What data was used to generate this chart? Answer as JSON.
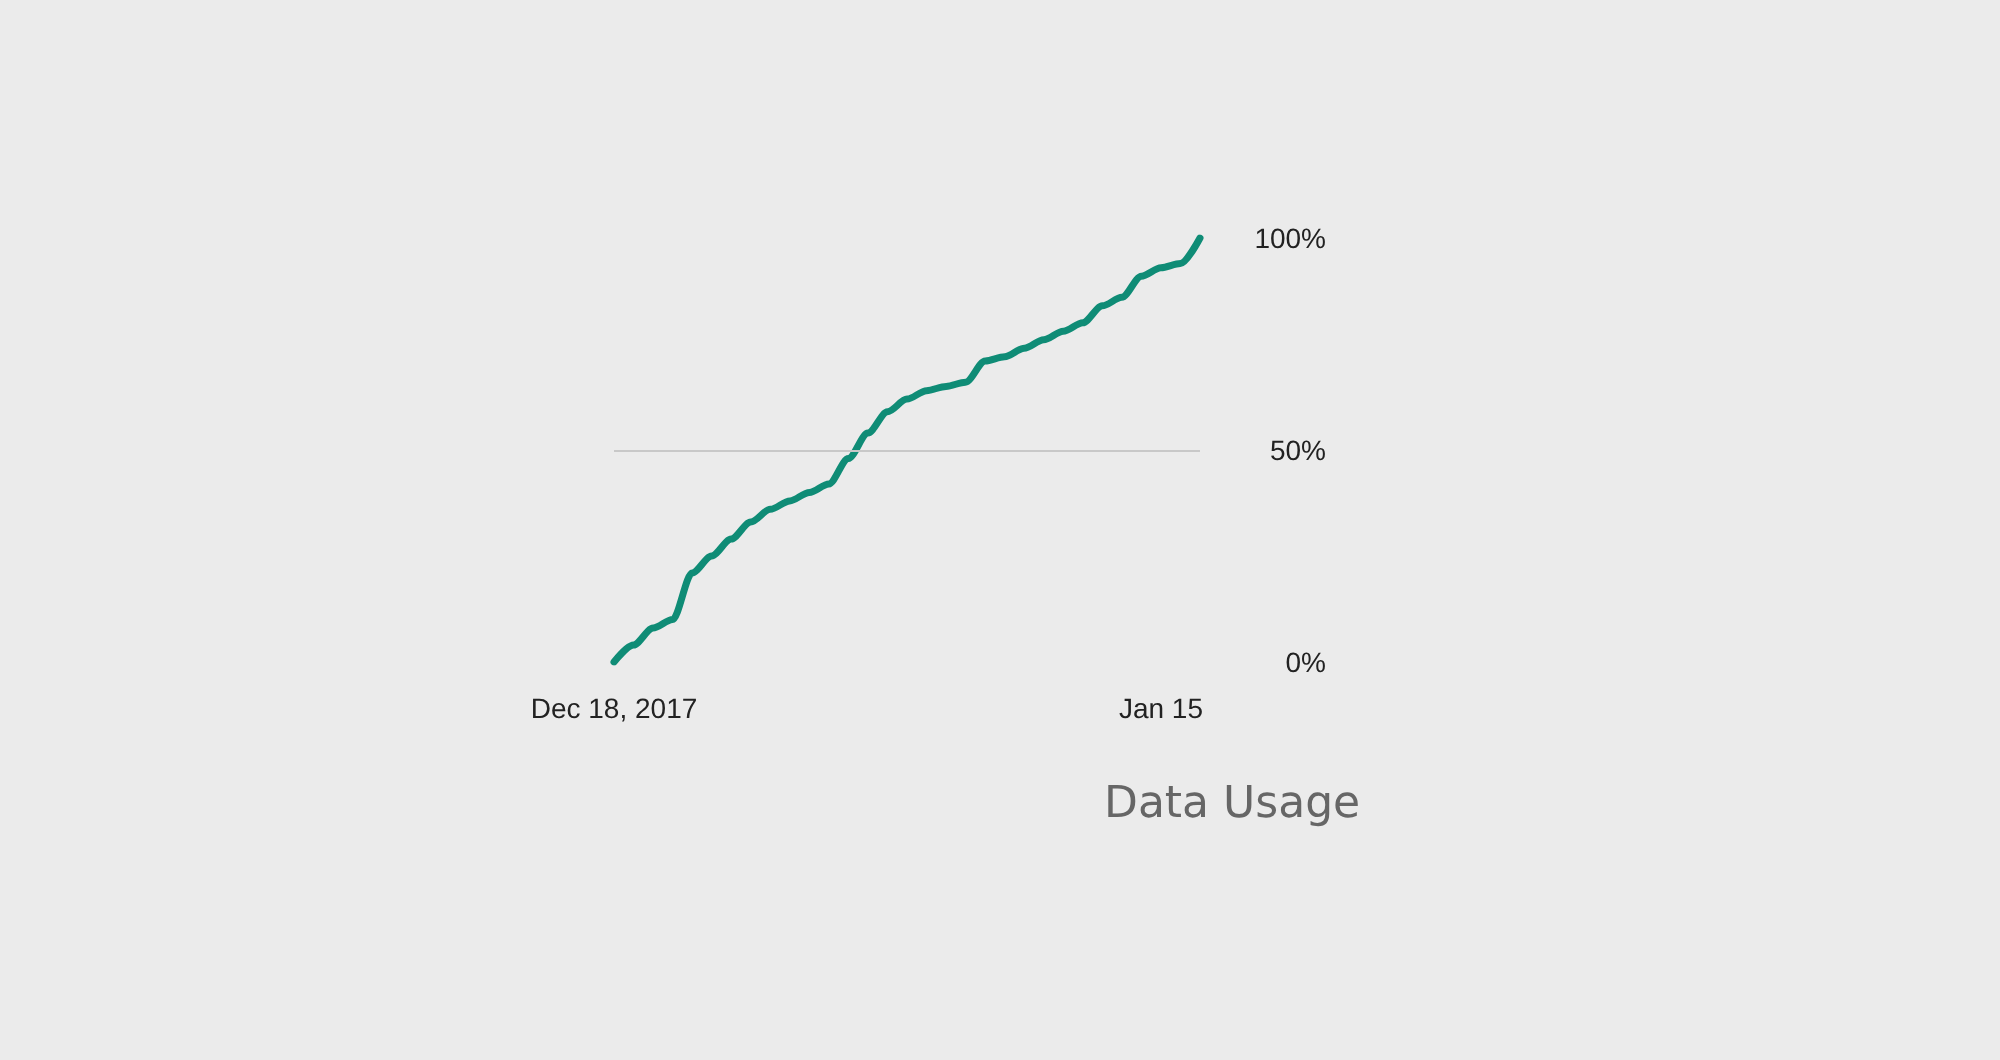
{
  "chart_data": {
    "type": "line",
    "title": "Data Usage",
    "x": [
      "2017-12-18",
      "2017-12-19",
      "2017-12-20",
      "2017-12-21",
      "2017-12-22",
      "2017-12-23",
      "2017-12-24",
      "2017-12-25",
      "2017-12-26",
      "2017-12-27",
      "2017-12-28",
      "2017-12-29",
      "2017-12-30",
      "2017-12-31",
      "2018-01-01",
      "2018-01-02",
      "2018-01-03",
      "2018-01-04",
      "2018-01-05",
      "2018-01-06",
      "2018-01-07",
      "2018-01-08",
      "2018-01-09",
      "2018-01-10",
      "2018-01-11",
      "2018-01-12",
      "2018-01-13",
      "2018-01-14",
      "2018-01-15",
      "2018-01-16",
      "2018-01-17"
    ],
    "series": [
      {
        "color": "#0f8c76",
        "values": [
          0,
          4,
          8,
          10,
          21,
          25,
          29,
          33,
          36,
          38,
          40,
          42,
          48,
          54,
          59,
          62,
          64,
          65,
          66,
          71,
          72,
          74,
          76,
          78,
          80,
          84,
          86,
          91,
          93,
          94,
          100
        ]
      }
    ],
    "xlim": [
      "2017-12-18",
      "2018-01-17"
    ],
    "xticks": [
      {
        "value": "2017-12-18",
        "label": "Dec 18, 2017"
      },
      {
        "value": "2018-01-15",
        "label": "Jan 15"
      }
    ],
    "ylim": [
      0,
      100
    ],
    "yticks": [
      {
        "value": 0,
        "label": "0%"
      },
      {
        "value": 50,
        "label": "50%"
      },
      {
        "value": 100,
        "label": "100%"
      }
    ],
    "ref_lines": [
      {
        "axis": "y",
        "value": 50,
        "color": "#c8c8c8"
      }
    ],
    "grid": false,
    "marker": "none",
    "line_style": "solid"
  }
}
